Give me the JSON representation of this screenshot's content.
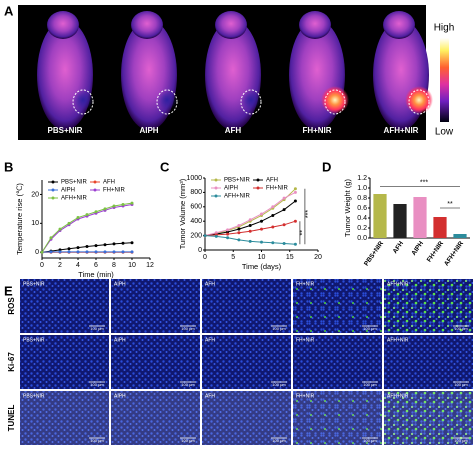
{
  "panel_letters": [
    "A",
    "B",
    "C",
    "D",
    "E"
  ],
  "panel_a": {
    "labels": [
      "PBS+NIR",
      "AIPH",
      "AFH",
      "FH+NIR",
      "AFH+NIR"
    ],
    "colorbar": {
      "high": "High",
      "low": "Low"
    }
  },
  "chart_data": [
    {
      "type": "line",
      "x": [
        0,
        1,
        2,
        3,
        4,
        5,
        6,
        7,
        8,
        9,
        10
      ],
      "xlim": [
        0,
        12
      ],
      "xticks": [
        0,
        2,
        4,
        6,
        8,
        10,
        12
      ],
      "ylim": [
        -2,
        25
      ],
      "yticks": [
        0,
        10,
        20
      ],
      "xlabel": "Time (min)",
      "ylabel": "Temperature rise (℃)",
      "series": [
        {
          "name": "PBS+NIR",
          "color": "#000000",
          "values": [
            0,
            0.4,
            0.8,
            1.2,
            1.6,
            2,
            2.3,
            2.6,
            2.9,
            3.1,
            3.3
          ]
        },
        {
          "name": "AFH",
          "color": "#e8452c",
          "values": [
            0,
            0,
            0,
            0,
            0,
            0,
            0,
            0,
            0,
            0,
            0
          ]
        },
        {
          "name": "AIPH",
          "color": "#3b6fd8",
          "values": [
            0,
            0.1,
            0.1,
            0.1,
            0.1,
            0.1,
            0.1,
            0.1,
            0.1,
            0.1,
            0.1
          ]
        },
        {
          "name": "FH+NIR",
          "color": "#9b3fd0",
          "values": [
            0,
            4.5,
            7.5,
            9.5,
            11.5,
            12.5,
            13.5,
            14.5,
            15.5,
            16,
            16.5
          ]
        },
        {
          "name": "AFH+NIR",
          "color": "#7cc144",
          "values": [
            0,
            5,
            8,
            10,
            12,
            13,
            14,
            15,
            16,
            16.5,
            17
          ]
        }
      ]
    },
    {
      "type": "line",
      "x": [
        0,
        2,
        4,
        6,
        8,
        10,
        12,
        14,
        16
      ],
      "xlim": [
        0,
        20
      ],
      "xticks": [
        0,
        5,
        10,
        15,
        20
      ],
      "ylim": [
        0,
        1000
      ],
      "yticks": [
        0,
        200,
        400,
        600,
        800,
        1000
      ],
      "xlabel": "Time (days)",
      "ylabel": "Tumor Volume (mm³)",
      "series": [
        {
          "name": "PBS+NIR",
          "color": "#b5b84a",
          "values": [
            200,
            230,
            270,
            320,
            400,
            480,
            580,
            700,
            850
          ]
        },
        {
          "name": "AFH",
          "color": "#000000",
          "values": [
            200,
            220,
            250,
            290,
            340,
            400,
            480,
            560,
            680
          ]
        },
        {
          "name": "AIPH",
          "color": "#e98fc2",
          "values": [
            200,
            240,
            280,
            340,
            420,
            500,
            600,
            720,
            800
          ]
        },
        {
          "name": "FH+NIR",
          "color": "#d32f2f",
          "values": [
            200,
            210,
            220,
            240,
            260,
            290,
            320,
            350,
            400
          ]
        },
        {
          "name": "AFH+NIR",
          "color": "#2c8c9c",
          "values": [
            200,
            190,
            170,
            140,
            120,
            110,
            100,
            90,
            80
          ]
        }
      ],
      "annotations": [
        "**",
        "***"
      ]
    },
    {
      "type": "bar",
      "categories": [
        "PBS+NIR",
        "AFH",
        "AIPH",
        "FH+NIR",
        "AFH+NIR"
      ],
      "values": [
        0.88,
        0.68,
        0.82,
        0.42,
        0.08
      ],
      "colors": [
        "#b5b84a",
        "#222222",
        "#e98fc2",
        "#d32f2f",
        "#2c8c9c"
      ],
      "ylim": [
        0,
        1.2
      ],
      "yticks": [
        {
          "value": 0,
          "label": "0.0"
        },
        {
          "value": 0.2,
          "label": "0.2"
        },
        {
          "value": 0.4,
          "label": "0.4"
        },
        {
          "value": 0.6,
          "label": "0.6"
        },
        {
          "value": 0.8,
          "label": "0.8"
        },
        {
          "value": 1,
          "label": "1.0"
        },
        {
          "value": 1.2,
          "label": "1.2"
        }
      ],
      "ylabel": "Tumor Weight (g)",
      "annotations": [
        "***",
        "**"
      ]
    }
  ],
  "panel_e": {
    "rows": [
      "ROS",
      "Ki-67",
      "TUNEL"
    ],
    "columns": [
      "PBS+NIR",
      "AIPH",
      "AFH",
      "FH+NIR",
      "AFH+NIR"
    ],
    "scale_bar": "100 μm"
  }
}
